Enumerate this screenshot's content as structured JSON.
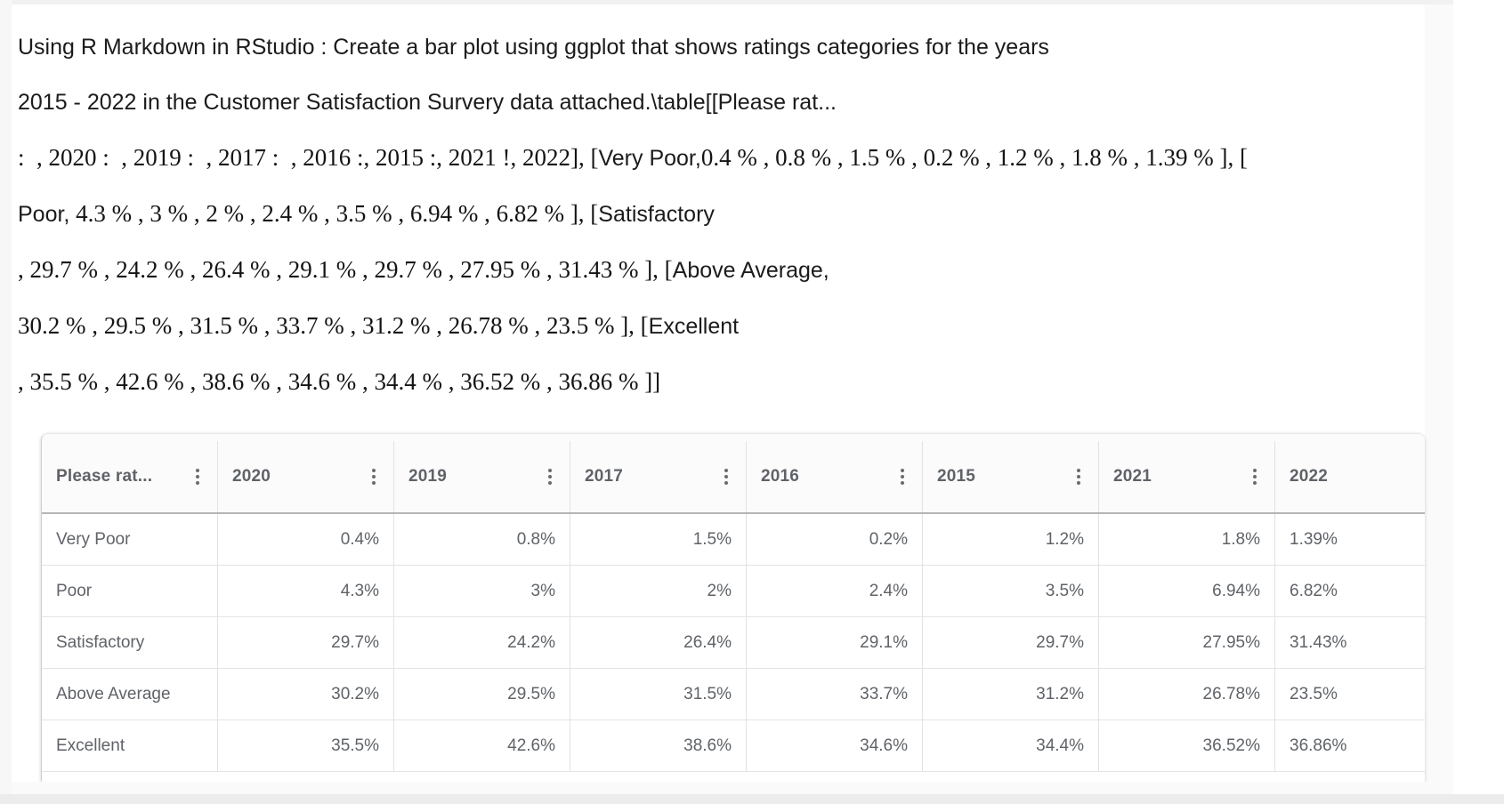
{
  "prompt": {
    "lines": [
      {
        "segments": [
          {
            "font": "sans",
            "text": "Using R Markdown in RStudio : Create a bar plot using ggplot that shows ratings categories for the years"
          }
        ]
      },
      {
        "segments": [
          {
            "font": "sans",
            "text": "2015 - 2022 in the Customer Satisfaction Survery data attached.\\table[[Please rat..."
          }
        ]
      },
      {
        "segments": [
          {
            "font": "serif",
            "text": ":  , 2020 :  , 2019 :  , 2017 :  , 2016 :, 2015 :, 2021 !, 2022], ["
          },
          {
            "font": "sans",
            "text": "Very Poor,"
          },
          {
            "font": "serif",
            "text": "0.4 % , 0.8 % , 1.5 % , 0.2 % , 1.2 % , 1.8 % , 1.39 % ], ["
          }
        ]
      },
      {
        "segments": [
          {
            "font": "sans",
            "text": "Poor,"
          },
          {
            "font": "serif",
            "text": " 4.3 % , 3 % , 2 % , 2.4 % , 3.5 % , 6.94 % , 6.82 % ], ["
          },
          {
            "font": "sans",
            "text": "Satisfactory"
          }
        ]
      },
      {
        "segments": [
          {
            "font": "serif",
            "text": ", 29.7 % , 24.2 % , 26.4 % , 29.1 % , 29.7 % , 27.95 % , 31.43 % ], ["
          },
          {
            "font": "sans",
            "text": "Above Average,"
          }
        ]
      },
      {
        "segments": [
          {
            "font": "serif",
            "text": "30.2 % , 29.5 % , 31.5 % , 33.7 % , 31.2 % , 26.78 % , 23.5 % ], ["
          },
          {
            "font": "sans",
            "text": "Excellent"
          }
        ]
      },
      {
        "segments": [
          {
            "font": "serif",
            "text": ", 35.5 % , 42.6 % , 38.6 % , 34.6 % , 34.4 % , 36.52 % , 36.86 % ]]"
          }
        ]
      }
    ]
  },
  "table": {
    "menu_icon": "kebab-vertical-icon",
    "columns": [
      {
        "label": "Please rat..."
      },
      {
        "label": "2020"
      },
      {
        "label": "2019"
      },
      {
        "label": "2017"
      },
      {
        "label": "2016"
      },
      {
        "label": "2015"
      },
      {
        "label": "2021"
      },
      {
        "label": "2022"
      }
    ],
    "rows": [
      {
        "label": "Very Poor",
        "values": [
          "0.4%",
          "0.8%",
          "1.5%",
          "0.2%",
          "1.2%",
          "1.8%",
          "1.39%"
        ]
      },
      {
        "label": "Poor",
        "values": [
          "4.3%",
          "3%",
          "2%",
          "2.4%",
          "3.5%",
          "6.94%",
          "6.82%"
        ]
      },
      {
        "label": "Satisfactory",
        "values": [
          "29.7%",
          "24.2%",
          "26.4%",
          "29.1%",
          "29.7%",
          "27.95%",
          "31.43%"
        ]
      },
      {
        "label": "Above Average",
        "values": [
          "30.2%",
          "29.5%",
          "31.5%",
          "33.7%",
          "31.2%",
          "26.78%",
          "23.5%"
        ]
      },
      {
        "label": "Excellent",
        "values": [
          "35.5%",
          "42.6%",
          "38.6%",
          "34.6%",
          "34.4%",
          "36.52%",
          "36.86%"
        ]
      }
    ],
    "colors": {
      "header_text": "#5f6368",
      "cell_text": "#5f6368",
      "row_border": "#e4e4e4",
      "header_border": "#b5b5b5",
      "card_bg": "#ffffff"
    }
  }
}
